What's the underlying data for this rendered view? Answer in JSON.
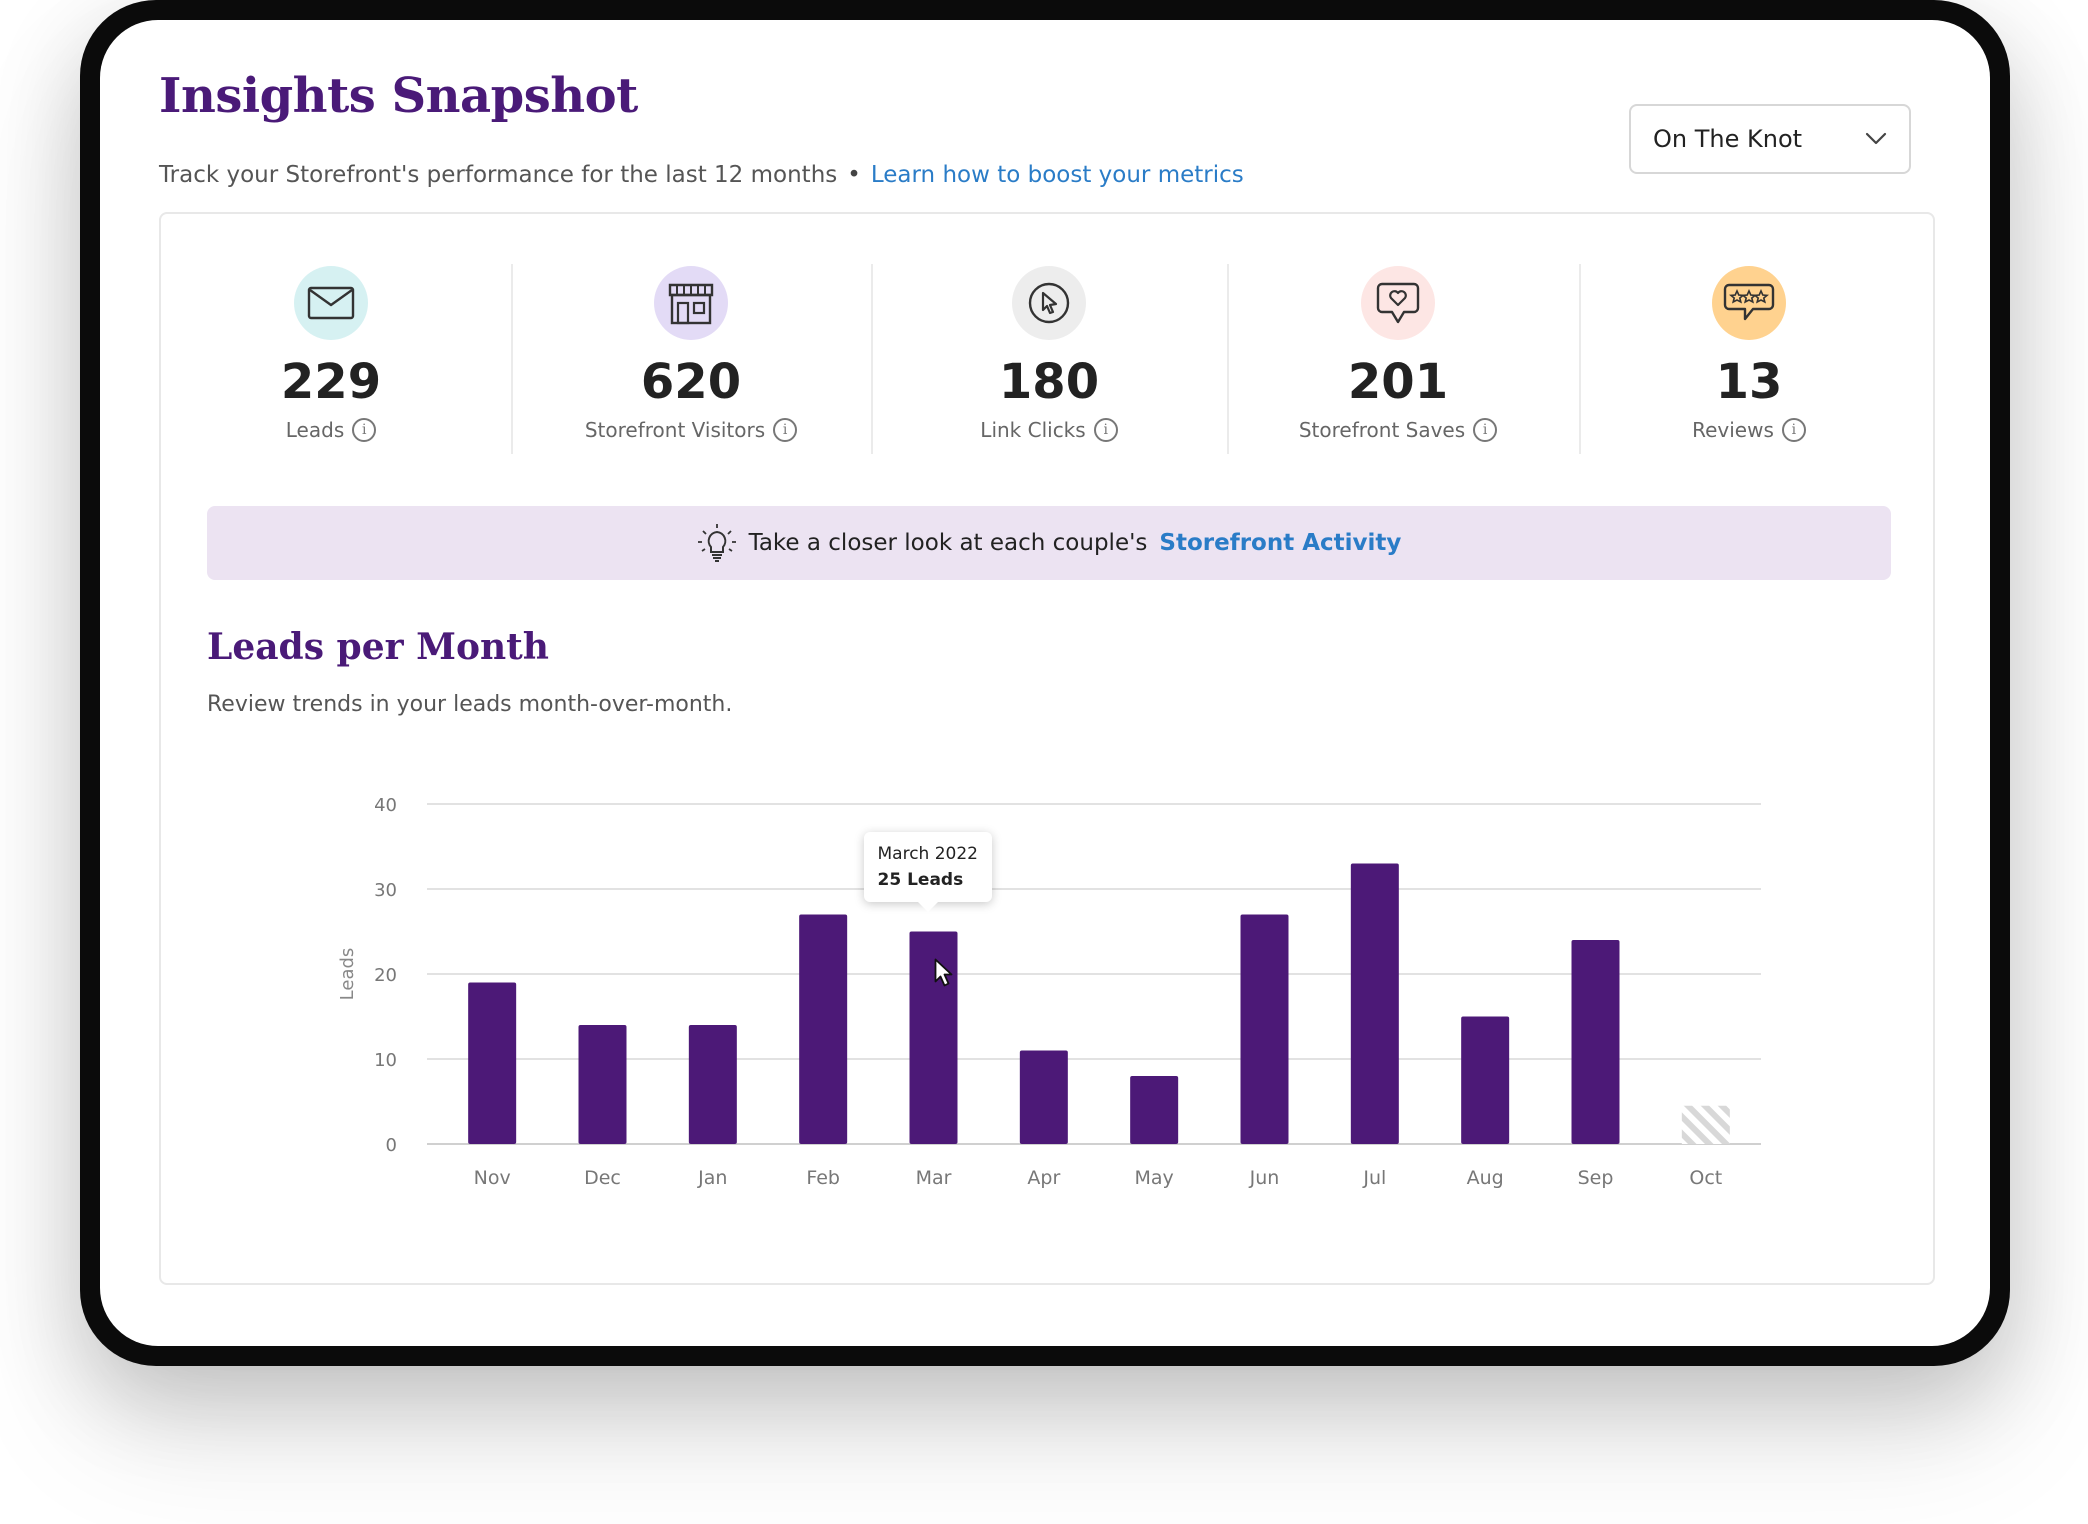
{
  "header": {
    "title": "Insights Snapshot",
    "subtitle": "Track your Storefront's performance for the last 12 months",
    "separator": "•",
    "learn_link": "Learn how to boost your metrics"
  },
  "source_select": {
    "value": "On The Knot",
    "icon": "chevron-down-icon"
  },
  "metrics": [
    {
      "value": "229",
      "label": "Leads",
      "icon": "envelope-icon",
      "icon_bg": "#d6f1f2"
    },
    {
      "value": "620",
      "label": "Storefront Visitors",
      "icon": "storefront-icon",
      "icon_bg": "#e3dbf6"
    },
    {
      "value": "180",
      "label": "Link Clicks",
      "icon": "cursor-click-icon",
      "icon_bg": "#ededed"
    },
    {
      "value": "201",
      "label": "Storefront Saves",
      "icon": "heart-bubble-icon",
      "icon_bg": "#fde6e4"
    },
    {
      "value": "13",
      "label": "Reviews",
      "icon": "star-bubble-icon",
      "icon_bg": "#ffd28f"
    }
  ],
  "banner": {
    "icon": "lightbulb-icon",
    "text": "Take a closer look at each couple's",
    "link": "Storefront Activity"
  },
  "section": {
    "title": "Leads per Month",
    "subtitle": "Review trends in your leads month-over-month."
  },
  "tooltip": {
    "title": "March 2022",
    "value": "25 Leads"
  },
  "colors": {
    "bar": "#4c1977",
    "accent": "#4a1a78",
    "link": "#2a7cc7"
  },
  "chart_data": {
    "type": "bar",
    "categories": [
      "Nov",
      "Dec",
      "Jan",
      "Feb",
      "Mar",
      "Apr",
      "May",
      "Jun",
      "Jul",
      "Aug",
      "Sep",
      "Oct"
    ],
    "values": [
      19,
      14,
      14,
      27,
      25,
      11,
      8,
      27,
      33,
      15,
      24,
      null
    ],
    "placeholder_category": "Oct",
    "ylabel": "Leads",
    "xlabel": "",
    "ylim": [
      0,
      40
    ],
    "yticks": [
      0,
      10,
      20,
      30,
      40
    ],
    "grid": true,
    "highlighted": "Mar"
  }
}
